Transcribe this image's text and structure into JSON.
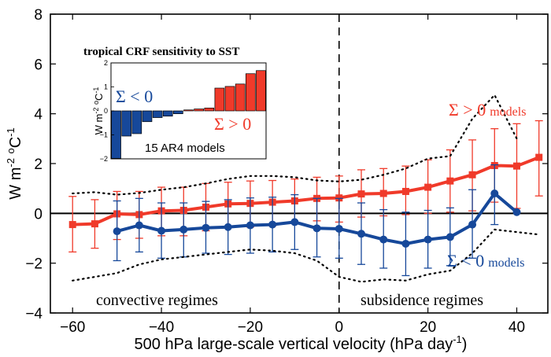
{
  "chart_data": {
    "type": "line",
    "xlabel": "500 hPa large-scale vertical velocity (hPa day",
    "xlabel_sup": "-1",
    "xlabel_tail": ")",
    "ylabel": {
      "base": "W m",
      "sup1": "-2",
      "mid": " ",
      "deg": "o",
      "tail": "C",
      "sup2": "-1"
    },
    "xlim": [
      -65,
      47
    ],
    "ylim": [
      -4,
      8
    ],
    "xticks": [
      -60,
      -40,
      -20,
      0,
      20,
      40
    ],
    "xtick_labels": [
      "−60",
      "−40",
      "−20",
      "0",
      "20",
      "40"
    ],
    "yticks": [
      -4,
      -2,
      0,
      2,
      4,
      6,
      8
    ],
    "ytick_labels": [
      "−4",
      "−2",
      "0",
      "2",
      "4",
      "6",
      "8"
    ],
    "zero_line": true,
    "vertical_dashed_x": 0,
    "series": [
      {
        "name": "Σ > 0 models",
        "color": "#f03a2a",
        "x": [
          -60,
          -55,
          -50,
          -45,
          -40,
          -35,
          -30,
          -25,
          -20,
          -15,
          -10,
          -5,
          0,
          5,
          10,
          15,
          20,
          25,
          30,
          35,
          40,
          45
        ],
        "y": [
          -0.45,
          -0.42,
          -0.02,
          -0.05,
          0.1,
          0.12,
          0.25,
          0.38,
          0.4,
          0.45,
          0.5,
          0.6,
          0.62,
          0.78,
          0.8,
          0.88,
          1.05,
          1.3,
          1.55,
          1.92,
          1.9,
          2.25
        ],
        "err_low": [
          -1.55,
          -1.4,
          -1.05,
          -1.0,
          -0.9,
          -0.9,
          -0.7,
          -0.55,
          -0.55,
          -0.5,
          -0.4,
          -0.3,
          -0.35,
          -0.15,
          -0.1,
          -0.05,
          0.0,
          0.05,
          0.1,
          0.45,
          0.2,
          0.7
        ],
        "err_high": [
          0.68,
          0.55,
          0.88,
          0.88,
          1.05,
          1.05,
          1.2,
          1.25,
          1.3,
          1.32,
          1.38,
          1.45,
          1.5,
          1.75,
          1.8,
          1.9,
          2.15,
          2.55,
          2.95,
          3.4,
          3.6,
          3.72
        ]
      },
      {
        "name": "Σ < 0 models",
        "color": "#16489a",
        "x": [
          -50,
          -45,
          -40,
          -35,
          -30,
          -25,
          -20,
          -15,
          -10,
          -5,
          0,
          5,
          10,
          15,
          20,
          25,
          30,
          35,
          40
        ],
        "y": [
          -0.72,
          -0.48,
          -0.7,
          -0.65,
          -0.58,
          -0.55,
          -0.48,
          -0.45,
          -0.35,
          -0.6,
          -0.62,
          -0.82,
          -1.05,
          -1.22,
          -1.05,
          -0.95,
          -0.45,
          0.8,
          0.05
        ],
        "err_low": [
          -1.9,
          -1.55,
          -1.8,
          -1.75,
          -1.6,
          -1.65,
          -1.6,
          -1.55,
          -1.45,
          -1.75,
          -1.8,
          -2.05,
          -2.2,
          -2.5,
          -2.2,
          -2.1,
          -1.8,
          -0.45,
          null
        ],
        "err_high": [
          0.5,
          0.6,
          0.42,
          0.42,
          0.48,
          0.55,
          0.62,
          0.65,
          0.75,
          0.6,
          0.6,
          0.42,
          0.15,
          0.05,
          0.12,
          0.22,
          0.95,
          1.95,
          0.55
        ]
      },
      {
        "name": "spread envelope upper",
        "color": "#000000",
        "style": "dotted",
        "x": [
          -60,
          -55,
          -50,
          -45,
          -40,
          -35,
          -30,
          -25,
          -20,
          -15,
          -10,
          -5,
          0,
          5,
          10,
          15,
          20,
          25,
          30,
          35,
          40
        ],
        "y": [
          0.8,
          0.85,
          0.75,
          0.82,
          0.95,
          1.05,
          1.2,
          1.38,
          1.5,
          1.5,
          1.45,
          1.32,
          1.28,
          1.35,
          1.55,
          1.8,
          2.2,
          2.3,
          3.8,
          4.75,
          3.0
        ]
      },
      {
        "name": "spread envelope lower",
        "color": "#000000",
        "style": "dotted",
        "x": [
          -60,
          -55,
          -50,
          -45,
          -40,
          -35,
          -30,
          -25,
          -20,
          -15,
          -10,
          -5,
          0,
          5,
          10,
          15,
          20,
          25,
          30,
          35,
          40,
          45
        ],
        "y": [
          -2.7,
          -2.55,
          -2.4,
          -2.05,
          -1.85,
          -1.75,
          -1.65,
          -1.55,
          -1.45,
          -1.5,
          -1.6,
          -1.9,
          -2.55,
          -2.75,
          -2.65,
          -2.7,
          -2.45,
          -2.3,
          -1.6,
          -0.65,
          -0.75,
          -0.85
        ]
      }
    ],
    "labels": {
      "pos_models": {
        "sym": "Σ > 0",
        "word": "models"
      },
      "neg_models": {
        "sym": "Σ < 0",
        "word": "models"
      },
      "convective": "convective regimes",
      "subsidence": "subsidence regimes"
    },
    "inset": {
      "type": "bar",
      "title": "tropical CRF sensitivity to SST",
      "ylabel": {
        "base": "W m",
        "sup1": "-2",
        "mid": " ",
        "deg": "o",
        "tail": "C",
        "sup2": "-1"
      },
      "xlabel": "15 AR4 models",
      "ylim": [
        -2,
        2
      ],
      "yticks": [
        -2,
        -1,
        0,
        1,
        2
      ],
      "ytick_labels": [
        "−2",
        "−1",
        "0",
        "1",
        "2"
      ],
      "values": [
        -1.98,
        -1.05,
        -0.95,
        -0.45,
        -0.28,
        -0.22,
        -0.12,
        0.04,
        0.08,
        0.12,
        0.95,
        1.02,
        1.12,
        1.55,
        1.68
      ],
      "neg_color": "#16489a",
      "pos_color": "#f03a2a",
      "neg_label": "Σ < 0",
      "pos_label": "Σ > 0"
    }
  }
}
